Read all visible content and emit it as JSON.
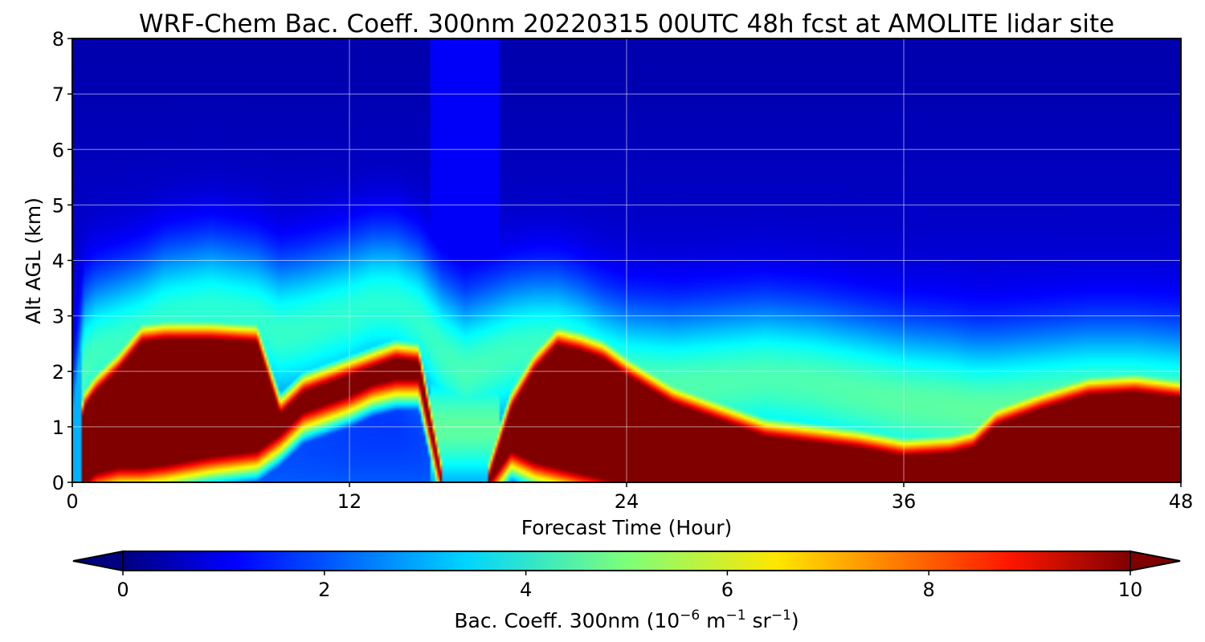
{
  "chart_data": {
    "type": "heatmap",
    "title": "WRF-Chem Bac. Coeff. 300nm  20220315 00UTC 48h fcst at AMOLITE lidar site",
    "xlabel": "Forecast Time (Hour)",
    "ylabel": "Alt AGL (km)",
    "xlim": [
      0,
      48
    ],
    "ylim": [
      0,
      8
    ],
    "x_ticks": [
      0,
      12,
      24,
      36,
      48
    ],
    "y_ticks": [
      0,
      1,
      2,
      3,
      4,
      5,
      6,
      7,
      8
    ],
    "grid": true,
    "colormap": "jet",
    "colorbar": {
      "label_main": "Bac. Coeff. 300nm  (10",
      "label_exp1": "−6",
      "label_mid": " m",
      "label_exp2": "−1",
      "label_mid2": " sr",
      "label_exp3": "−1",
      "label_end": ")",
      "range": [
        0,
        10
      ],
      "ticks": [
        0,
        2,
        4,
        6,
        8,
        10
      ],
      "extend": "both"
    },
    "features": {
      "hours": [
        0,
        0.5,
        1,
        2,
        3,
        4,
        6,
        8,
        9,
        10,
        12,
        13,
        14,
        15,
        16,
        17,
        18,
        19,
        20,
        21,
        22,
        23,
        24,
        26,
        28,
        30,
        32,
        34,
        36,
        38,
        39,
        40,
        42,
        44,
        46,
        48
      ],
      "bl_top_km": [
        0.0,
        1.3,
        1.6,
        2.0,
        2.5,
        2.55,
        2.55,
        2.5,
        1.2,
        1.6,
        1.9,
        2.05,
        2.2,
        2.15,
        0,
        0,
        0,
        1.3,
        2.0,
        2.45,
        2.35,
        2.2,
        1.9,
        1.4,
        1.1,
        0.8,
        0.7,
        0.6,
        0.45,
        0.5,
        0.6,
        1.0,
        1.3,
        1.55,
        1.6,
        1.5
      ],
      "bl_base_km": [
        0,
        0,
        0.2,
        0.3,
        0.3,
        0.35,
        0.5,
        0.6,
        0.9,
        1.3,
        1.6,
        1.8,
        1.9,
        1.9,
        0,
        0,
        0,
        0.6,
        0.4,
        0.3,
        0.2,
        0.1,
        0,
        0,
        0,
        0,
        0,
        0,
        0,
        0,
        0,
        0,
        0,
        0,
        0,
        0
      ],
      "aloft_km": [
        0,
        2.5,
        2.8,
        3.0,
        3.2,
        3.5,
        3.7,
        3.5,
        3.2,
        3.3,
        3.6,
        3.8,
        3.8,
        3.5,
        2.8,
        2.4,
        2.6,
        2.8,
        2.9,
        2.9,
        2.7,
        2.4,
        2.2,
        2.1,
        2.2,
        2.3,
        2.2,
        2.0,
        1.8,
        1.7,
        1.6,
        1.6,
        1.7,
        1.8,
        1.8,
        1.7
      ]
    }
  }
}
